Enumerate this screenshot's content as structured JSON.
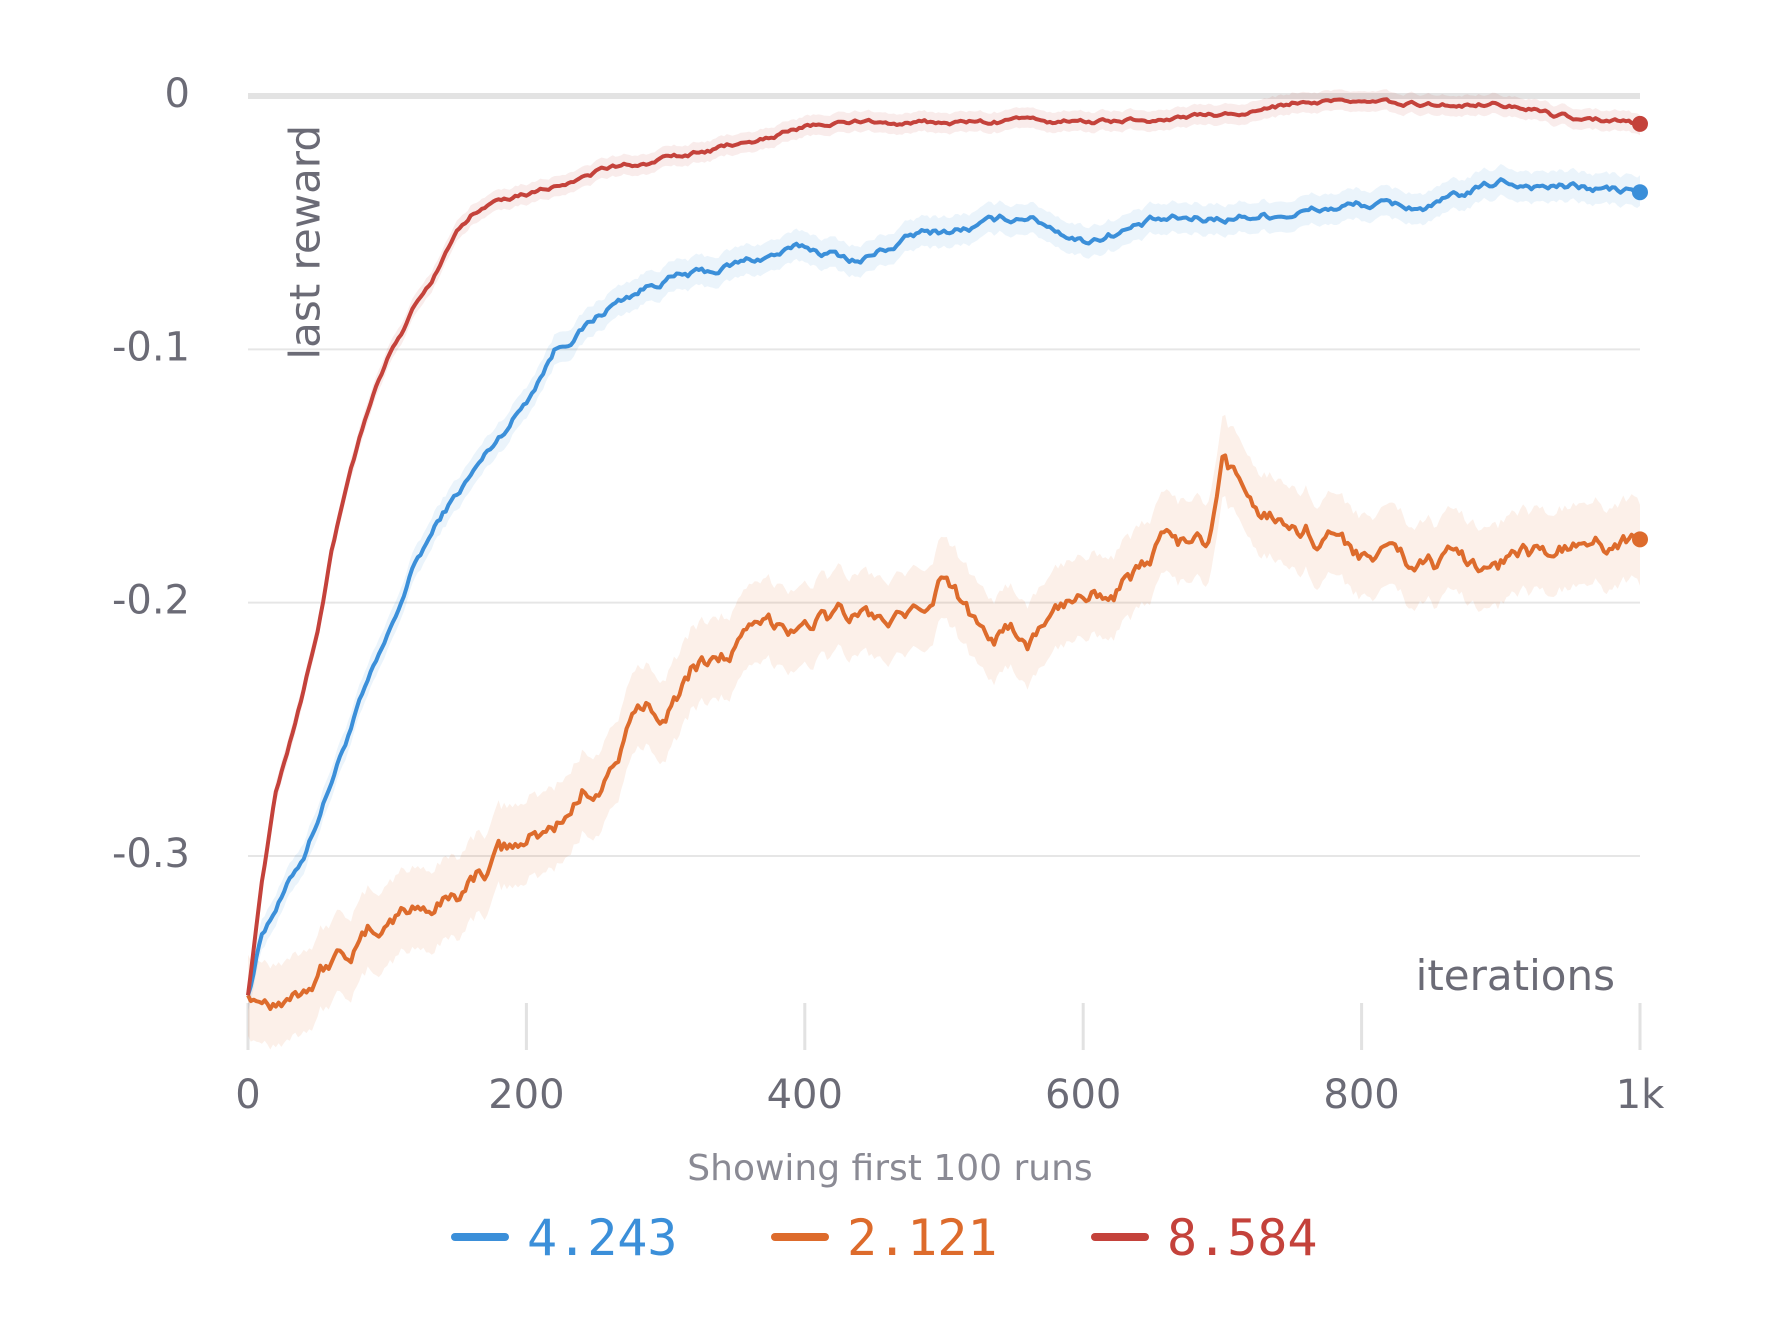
{
  "chart_data": {
    "type": "line",
    "xlabel": "iterations",
    "ylabel": "last reward",
    "note": "Showing first 100 runs",
    "xlim": [
      0,
      1000
    ],
    "ylim": [
      -0.36,
      0
    ],
    "x_ticks": [
      0,
      200,
      400,
      600,
      800,
      1000
    ],
    "x_tick_labels": [
      "0",
      "200",
      "400",
      "600",
      "800",
      "1k"
    ],
    "y_ticks": [
      0,
      -0.1,
      -0.2,
      -0.3
    ],
    "y_tick_labels": [
      "0",
      "-0.1",
      "-0.2",
      "-0.3"
    ],
    "grid": true,
    "legend_position": "bottom-center",
    "series": [
      {
        "name": "4.243",
        "color": "#3b8fd9",
        "x": [
          0,
          10,
          20,
          40,
          60,
          80,
          100,
          120,
          140,
          160,
          180,
          200,
          220,
          240,
          260,
          280,
          300,
          330,
          360,
          400,
          440,
          480,
          520,
          560,
          600,
          650,
          700,
          750,
          800,
          850,
          900,
          950,
          1000
        ],
        "values": [
          -0.355,
          -0.33,
          -0.32,
          -0.3,
          -0.27,
          -0.24,
          -0.215,
          -0.185,
          -0.165,
          -0.15,
          -0.135,
          -0.12,
          -0.1,
          -0.092,
          -0.083,
          -0.077,
          -0.072,
          -0.07,
          -0.065,
          -0.06,
          -0.065,
          -0.055,
          -0.052,
          -0.047,
          -0.057,
          -0.05,
          -0.048,
          -0.046,
          -0.043,
          -0.044,
          -0.034,
          -0.036,
          -0.038
        ]
      },
      {
        "name": "2.121",
        "color": "#dd6b2c",
        "x": [
          0,
          20,
          40,
          60,
          80,
          100,
          120,
          140,
          160,
          180,
          200,
          220,
          240,
          260,
          280,
          300,
          320,
          360,
          400,
          440,
          480,
          500,
          520,
          560,
          600,
          640,
          660,
          690,
          700,
          720,
          760,
          800,
          840,
          880,
          920,
          960,
          1000
        ],
        "values": [
          -0.355,
          -0.355,
          -0.35,
          -0.34,
          -0.335,
          -0.325,
          -0.32,
          -0.318,
          -0.31,
          -0.3,
          -0.295,
          -0.29,
          -0.275,
          -0.265,
          -0.245,
          -0.24,
          -0.225,
          -0.215,
          -0.205,
          -0.205,
          -0.21,
          -0.19,
          -0.205,
          -0.215,
          -0.195,
          -0.19,
          -0.175,
          -0.18,
          -0.15,
          -0.16,
          -0.17,
          -0.18,
          -0.185,
          -0.185,
          -0.18,
          -0.18,
          -0.175
        ]
      },
      {
        "name": "8.584",
        "color": "#c4423b",
        "x": [
          0,
          10,
          20,
          30,
          40,
          50,
          60,
          70,
          80,
          90,
          100,
          110,
          120,
          130,
          140,
          150,
          160,
          180,
          200,
          220,
          250,
          280,
          300,
          330,
          360,
          400,
          450,
          500,
          550,
          600,
          650,
          700,
          730,
          750,
          800,
          850,
          900,
          920,
          940,
          970,
          1000
        ],
        "values": [
          -0.355,
          -0.31,
          -0.275,
          -0.255,
          -0.235,
          -0.21,
          -0.18,
          -0.155,
          -0.135,
          -0.118,
          -0.105,
          -0.095,
          -0.083,
          -0.075,
          -0.065,
          -0.055,
          -0.048,
          -0.04,
          -0.038,
          -0.035,
          -0.03,
          -0.027,
          -0.025,
          -0.022,
          -0.018,
          -0.012,
          -0.01,
          -0.011,
          -0.01,
          -0.01,
          -0.009,
          -0.008,
          -0.006,
          -0.003,
          -0.003,
          -0.003,
          -0.003,
          -0.004,
          -0.008,
          -0.009,
          -0.011
        ]
      }
    ]
  }
}
